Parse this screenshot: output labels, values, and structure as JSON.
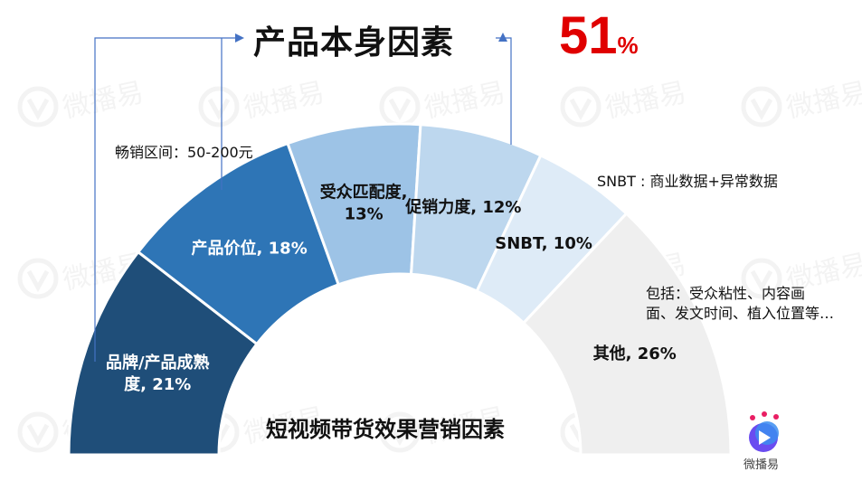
{
  "title": "产品本身因素",
  "highlight": {
    "number": "51",
    "symbol": "%"
  },
  "center_label": "短视频带货效果营销因素",
  "notes": {
    "price": "畅销区间：50-200元",
    "snbt": "SNBT : 商业数据+异常数据",
    "other_line1": "包括：受众粘性、内容画",
    "other_line2": "面、发文时间、植入位置等…"
  },
  "watermark_text": "微播易",
  "logo_text": "微播易",
  "colors": {
    "accent_red": "#e00000",
    "arrow": "#4472c4",
    "seg_brand": "#1f4e79",
    "seg_price": "#2e75b6",
    "seg_audience": "#9dc3e6",
    "seg_promo": "#bdd7ee",
    "seg_snbt": "#deebf7",
    "seg_other": "#efefef"
  },
  "chart_data": {
    "type": "pie",
    "shape": "half-donut",
    "title": "",
    "slices": [
      {
        "label_line1": "品牌/产品成熟",
        "label_line2": "度, 21%",
        "value": 21,
        "color": "#1f4e79",
        "text_color": "#ffffff"
      },
      {
        "label_line1": "产品价位, 18%",
        "label_line2": "",
        "value": 18,
        "color": "#2e75b6",
        "text_color": "#ffffff"
      },
      {
        "label_line1": "受众匹配度,",
        "label_line2": "13%",
        "value": 13,
        "color": "#9dc3e6",
        "text_color": "#111111"
      },
      {
        "label_line1": "促销力度, 12%",
        "label_line2": "",
        "value": 12,
        "color": "#bdd7ee",
        "text_color": "#111111"
      },
      {
        "label_line1": "SNBT, 10%",
        "label_line2": "",
        "value": 10,
        "color": "#deebf7",
        "text_color": "#111111"
      },
      {
        "label_line1": "其他, 26%",
        "label_line2": "",
        "value": 26,
        "color": "#efefef",
        "text_color": "#111111"
      }
    ]
  }
}
